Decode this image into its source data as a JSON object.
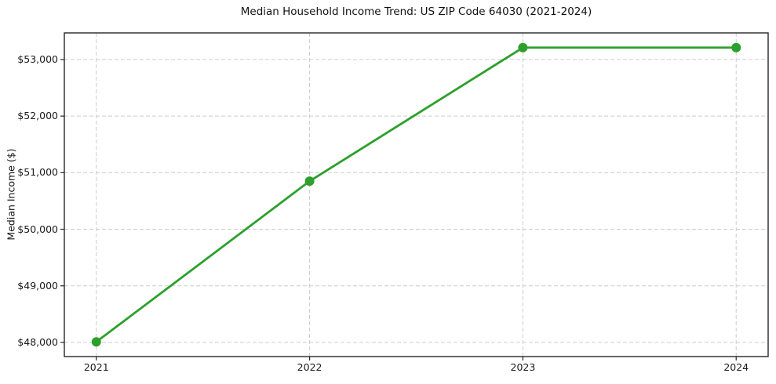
{
  "chart_data": {
    "type": "line",
    "title": "Median Household Income Trend: US ZIP Code 64030 (2021-2024)",
    "ylabel": "Median Income ($)",
    "xlabel": "",
    "x": [
      2021,
      2022,
      2023,
      2024
    ],
    "x_tick_labels": [
      "2021",
      "2022",
      "2023",
      "2024"
    ],
    "series": [
      {
        "name": "Median household income",
        "values": [
          48010,
          50850,
          53210,
          53210
        ]
      }
    ],
    "y_ticks": [
      48000,
      49000,
      50000,
      51000,
      52000,
      53000
    ],
    "y_tick_labels": [
      "$48,000",
      "$49,000",
      "$50,000",
      "$51,000",
      "$52,000",
      "$53,000"
    ],
    "xlim": [
      2020.85,
      2024.15
    ],
    "ylim": [
      47750,
      53470
    ],
    "grid": "dashed-both-axes",
    "legend": "none",
    "marker": "circle",
    "line_color": "#2ca02c",
    "grid_color": "#cccccc",
    "frame_color": "#262626",
    "background_color": "#ffffff"
  }
}
